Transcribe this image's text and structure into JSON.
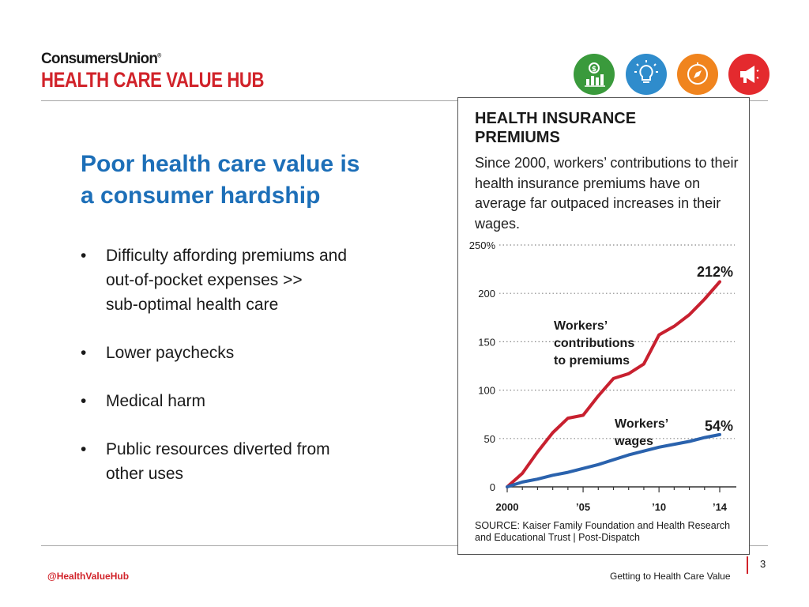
{
  "header": {
    "logo_top": "ConsumersUnion",
    "logo_registered": "®",
    "logo_bottom": "HEALTH CARE VALUE HUB",
    "icons": [
      {
        "name": "dollar-chart-icon",
        "color": "#3a9a3c"
      },
      {
        "name": "lightbulb-icon",
        "color": "#2f8ccc"
      },
      {
        "name": "compass-icon",
        "color": "#f0841e"
      },
      {
        "name": "megaphone-icon",
        "color": "#e42a2e"
      }
    ]
  },
  "slide": {
    "title_line1": "Poor health care value is",
    "title_line2": "a consumer hardship",
    "bullets": [
      "Difficulty affording premiums and\nout-of-pocket expenses >>\nsub-optimal health care",
      "Lower paychecks",
      "Medical harm",
      "Public resources diverted from\nother uses"
    ]
  },
  "chart": {
    "title": "HEALTH INSURANCE PREMIUMS",
    "subtitle": "Since 2000, workers’ contributions to their health insurance premiums have on average far outpaced increases in their wages.",
    "source": "SOURCE: Kaiser Family Foundation and Health Research and Educational Trust | Post-Dispatch"
  },
  "chart_data": {
    "type": "line",
    "title": "HEALTH INSURANCE PREMIUMS",
    "subtitle": "Since 2000, workers’ contributions to their health insurance premiums have on average far outpaced increases in their wages.",
    "x": [
      2000,
      2001,
      2002,
      2003,
      2004,
      2005,
      2006,
      2007,
      2008,
      2009,
      2010,
      2011,
      2012,
      2013,
      2014
    ],
    "xticks": [
      2000,
      2005,
      2010,
      2014
    ],
    "xtick_labels": [
      "2000",
      "’05",
      "’10",
      "’14"
    ],
    "ylim": [
      0,
      250
    ],
    "yticks": [
      0,
      50,
      100,
      150,
      200,
      250
    ],
    "ytick_labels": [
      "0",
      "50",
      "100",
      "150",
      "200",
      "250%"
    ],
    "grid": "horizontal dotted",
    "series": [
      {
        "name": "Workers’ contributions to premiums",
        "color": "#c8202f",
        "values": [
          0,
          14,
          36,
          56,
          71,
          74,
          94,
          112,
          117,
          127,
          157,
          166,
          178,
          194,
          212
        ],
        "end_label": "212%"
      },
      {
        "name": "Workers’ wages",
        "color": "#2a62ad",
        "values": [
          0,
          5,
          8,
          12,
          15,
          19,
          23,
          28,
          33,
          37,
          41,
          44,
          47,
          51,
          54
        ],
        "end_label": "54%"
      }
    ]
  },
  "footer": {
    "handle": "@HealthValueHub",
    "title": "Getting to Health Care Value",
    "page": "3"
  }
}
